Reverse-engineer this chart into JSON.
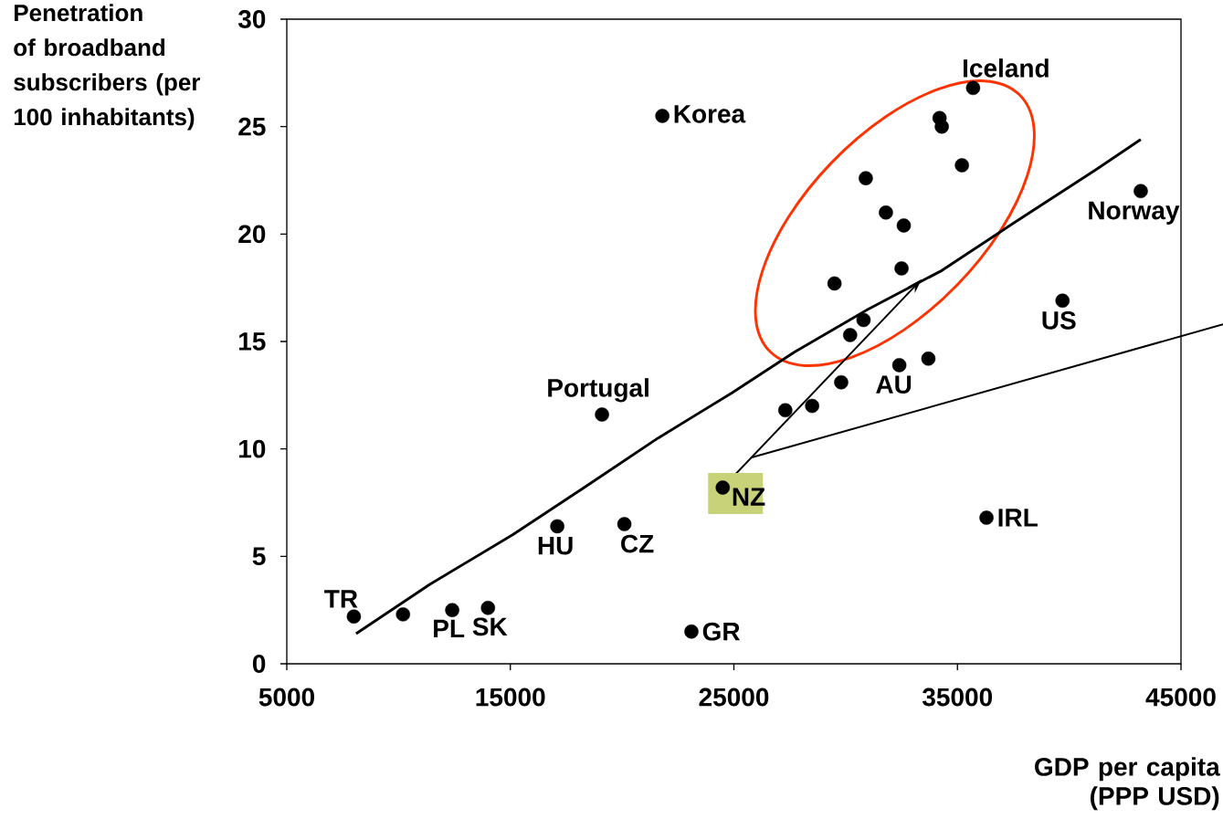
{
  "chart_data": {
    "type": "scatter",
    "xlabel": "GDP per capita (PPP USD)",
    "ylabel": "Penetration of broadband subscribers (per 100 inhabitants)",
    "xlim": [
      5000,
      45000
    ],
    "xticks": [
      5000,
      15000,
      25000,
      35000,
      45000
    ],
    "ylim": [
      0,
      30
    ],
    "yticks": [
      0,
      5,
      10,
      15,
      20,
      25,
      30
    ],
    "series": [
      {
        "type": "scatter",
        "color": "#000000",
        "marker": "circle",
        "x": [
          8000,
          10200,
          12400,
          14000,
          17100,
          20100,
          19100,
          21800,
          23100,
          24500,
          27300,
          28500,
          29800,
          30200,
          30800,
          29500,
          30900,
          31800,
          32600,
          32500,
          32400,
          33700,
          34200,
          34300,
          35200,
          35700,
          36300,
          39700,
          43200
        ],
        "values": [
          2.2,
          2.3,
          2.5,
          2.6,
          6.4,
          6.5,
          11.6,
          25.5,
          1.5,
          8.2,
          11.8,
          12.0,
          13.1,
          15.3,
          16.0,
          17.7,
          22.6,
          21.0,
          20.4,
          18.4,
          13.9,
          14.2,
          25.4,
          25.0,
          23.2,
          26.8,
          6.8,
          16.9,
          22.0
        ]
      },
      {
        "type": "line",
        "color": "#000000",
        "marker": "none",
        "line_style": "solid",
        "x": [
          8100,
          11400,
          15100,
          18300,
          21600,
          24900,
          27700,
          31000,
          34300,
          37500,
          41200,
          43200
        ],
        "values": [
          1.4,
          3.7,
          6.0,
          8.2,
          10.5,
          12.6,
          14.5,
          16.5,
          18.3,
          20.5,
          23.0,
          24.4
        ]
      }
    ],
    "annotations": [
      {
        "text": "TR",
        "x": 8000,
        "y": 2.2
      },
      {
        "text": "PL",
        "x": 12400,
        "y": 2.5
      },
      {
        "text": "SK",
        "x": 14000,
        "y": 2.6
      },
      {
        "text": "HU",
        "x": 17100,
        "y": 6.4
      },
      {
        "text": "CZ",
        "x": 20100,
        "y": 6.5
      },
      {
        "text": "Portugal",
        "x": 19100,
        "y": 11.6
      },
      {
        "text": "Korea",
        "x": 21800,
        "y": 25.5
      },
      {
        "text": "GR",
        "x": 23100,
        "y": 1.5
      },
      {
        "text": "NZ",
        "x": 24500,
        "y": 8.2
      },
      {
        "text": "AU",
        "x": 32400,
        "y": 13.9
      },
      {
        "text": "Iceland",
        "x": 35700,
        "y": 26.8
      },
      {
        "text": "IRL",
        "x": 36300,
        "y": 6.8
      },
      {
        "text": "US",
        "x": 39700,
        "y": 16.9
      },
      {
        "text": "Norway",
        "x": 43200,
        "y": 22.0
      }
    ]
  }
}
